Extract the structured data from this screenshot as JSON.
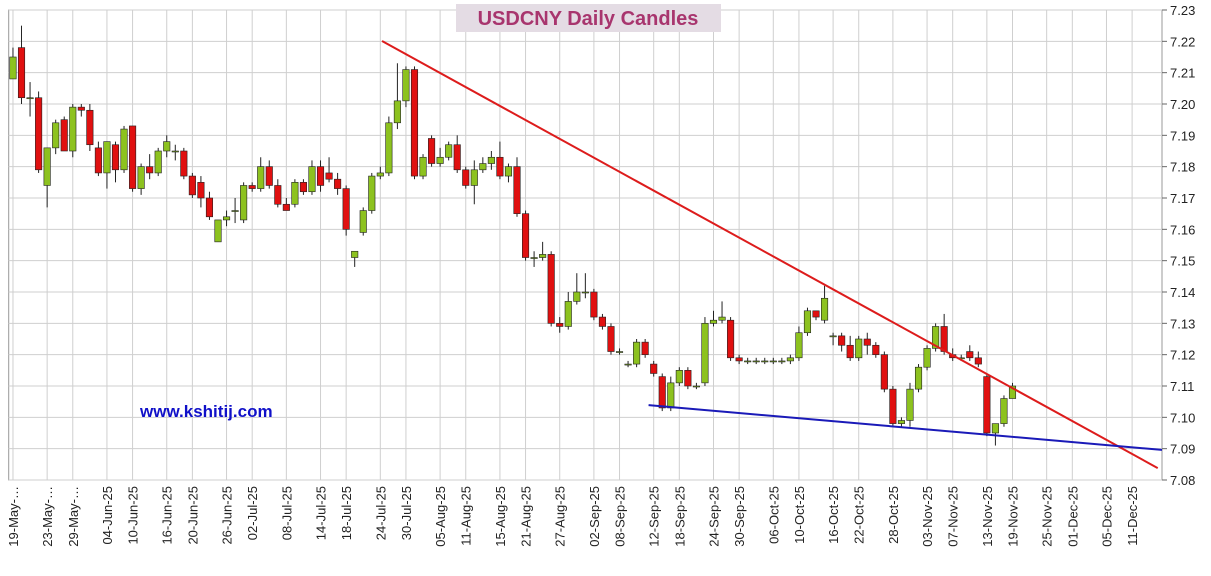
{
  "chart_data": {
    "type": "candlestick",
    "title": "USDCNY Daily Candles",
    "annotation": "www.kshitij.com",
    "up_color": "#8dc21f",
    "down_color": "#e01010",
    "grid": true,
    "ylim": [
      7.08,
      7.23
    ],
    "yticks": [
      7.08,
      7.09,
      {
        "value": 7.1,
        "label": "7.10"
      },
      7.11,
      7.12,
      7.13,
      7.14,
      7.15,
      7.16,
      7.17,
      7.18,
      7.19,
      {
        "value": 7.2,
        "label": "7.20"
      },
      7.21,
      7.22,
      7.23
    ],
    "categories": [
      "19-May-…",
      null,
      null,
      null,
      "23-May-…",
      null,
      null,
      "29-May-…",
      null,
      null,
      null,
      "04-Jun-25",
      null,
      null,
      "10-Jun-25",
      null,
      null,
      null,
      "16-Jun-25",
      null,
      null,
      "20-Jun-25",
      null,
      null,
      null,
      "26-Jun-25",
      null,
      null,
      "02-Jul-25",
      null,
      null,
      null,
      "08-Jul-25",
      null,
      null,
      null,
      "14-Jul-25",
      null,
      null,
      "18-Jul-25",
      null,
      null,
      null,
      "24-Jul-25",
      null,
      null,
      "30-Jul-25",
      null,
      null,
      null,
      "05-Aug-25",
      null,
      null,
      "11-Aug-25",
      null,
      null,
      null,
      "15-Aug-25",
      null,
      null,
      "21-Aug-25",
      null,
      null,
      null,
      "27-Aug-25",
      null,
      null,
      null,
      "02-Sep-25",
      null,
      null,
      "08-Sep-25",
      null,
      null,
      null,
      "12-Sep-25",
      null,
      null,
      "18-Sep-25",
      null,
      null,
      null,
      "24-Sep-25",
      null,
      null,
      "30-Sep-25",
      null,
      null,
      null,
      "06-Oct-25",
      null,
      null,
      "10-Oct-25",
      null,
      null,
      null,
      "16-Oct-25",
      null,
      null,
      "22-Oct-25",
      null,
      null,
      null,
      "28-Oct-25",
      null,
      null,
      null,
      "03-Nov-25",
      null,
      null,
      "07-Nov-25",
      null,
      null,
      null,
      "13-Nov-25",
      null,
      null,
      "19-Nov-25",
      null,
      null,
      null,
      "25-Nov-25",
      null,
      null,
      "01-Dec-25",
      null,
      null,
      null,
      "05-Dec-25",
      null,
      null,
      "11-Dec-25",
      null,
      null,
      null
    ],
    "ohlc": [
      [
        7.208,
        7.218,
        7.208,
        7.215
      ],
      [
        7.218,
        7.225,
        7.2,
        7.202
      ],
      [
        7.202,
        7.207,
        7.196,
        7.202
      ],
      [
        7.202,
        7.204,
        7.178,
        7.179
      ],
      [
        7.174,
        7.186,
        7.167,
        7.186
      ],
      [
        7.186,
        7.195,
        7.184,
        7.194
      ],
      [
        7.195,
        7.196,
        7.185,
        7.185
      ],
      [
        7.185,
        7.2,
        7.183,
        7.199
      ],
      [
        7.199,
        7.2,
        7.196,
        7.198
      ],
      [
        7.198,
        7.2,
        7.185,
        7.187
      ],
      [
        7.186,
        7.188,
        7.177,
        7.178
      ],
      [
        7.178,
        7.188,
        7.173,
        7.188
      ],
      [
        7.187,
        7.188,
        7.175,
        7.179
      ],
      [
        7.179,
        7.193,
        7.178,
        7.192
      ],
      [
        7.193,
        7.193,
        7.172,
        7.173
      ],
      [
        7.173,
        7.181,
        7.171,
        7.18
      ],
      [
        7.18,
        7.184,
        7.176,
        7.178
      ],
      [
        7.178,
        7.186,
        7.177,
        7.185
      ],
      [
        7.185,
        7.19,
        7.183,
        7.188
      ],
      [
        7.185,
        7.187,
        7.182,
        7.185
      ],
      [
        7.185,
        7.186,
        7.176,
        7.177
      ],
      [
        7.177,
        7.178,
        7.17,
        7.171
      ],
      [
        7.175,
        7.177,
        7.167,
        7.17
      ],
      [
        7.17,
        7.172,
        7.163,
        7.164
      ],
      [
        7.156,
        7.163,
        7.156,
        7.163
      ],
      [
        7.163,
        7.166,
        7.161,
        7.164
      ],
      [
        7.166,
        7.17,
        7.162,
        7.166
      ],
      [
        7.163,
        7.175,
        7.162,
        7.174
      ],
      [
        7.174,
        7.175,
        7.172,
        7.173
      ],
      [
        7.173,
        7.183,
        7.172,
        7.18
      ],
      [
        7.18,
        7.182,
        7.173,
        7.174
      ],
      [
        7.174,
        7.176,
        7.167,
        7.168
      ],
      [
        7.168,
        7.17,
        7.166,
        7.166
      ],
      [
        7.168,
        7.176,
        7.167,
        7.175
      ],
      [
        7.175,
        7.176,
        7.171,
        7.172
      ],
      [
        7.172,
        7.182,
        7.171,
        7.18
      ],
      [
        7.18,
        7.182,
        7.172,
        7.174
      ],
      [
        7.178,
        7.183,
        7.175,
        7.176
      ],
      [
        7.176,
        7.178,
        7.171,
        7.173
      ],
      [
        7.173,
        7.174,
        7.158,
        7.16
      ],
      [
        7.151,
        7.153,
        7.148,
        7.153
      ],
      [
        7.159,
        7.167,
        7.158,
        7.166
      ],
      [
        7.166,
        7.178,
        7.165,
        7.177
      ],
      [
        7.177,
        7.18,
        7.176,
        7.178
      ],
      [
        7.178,
        7.196,
        7.177,
        7.194
      ],
      [
        7.194,
        7.213,
        7.192,
        7.201
      ],
      [
        7.201,
        7.212,
        7.199,
        7.211
      ],
      [
        7.211,
        7.212,
        7.176,
        7.177
      ],
      [
        7.177,
        7.184,
        7.176,
        7.183
      ],
      [
        7.189,
        7.19,
        7.18,
        7.181
      ],
      [
        7.181,
        7.186,
        7.18,
        7.183
      ],
      [
        7.183,
        7.188,
        7.182,
        7.187
      ],
      [
        7.187,
        7.19,
        7.178,
        7.179
      ],
      [
        7.179,
        7.18,
        7.173,
        7.174
      ],
      [
        7.174,
        7.182,
        7.168,
        7.179
      ],
      [
        7.179,
        7.183,
        7.178,
        7.181
      ],
      [
        7.181,
        7.185,
        7.179,
        7.183
      ],
      [
        7.183,
        7.188,
        7.176,
        7.177
      ],
      [
        7.177,
        7.181,
        7.175,
        7.18
      ],
      [
        7.18,
        7.183,
        7.164,
        7.165
      ],
      [
        7.165,
        7.166,
        7.15,
        7.151
      ],
      [
        7.151,
        7.153,
        7.148,
        7.151
      ],
      [
        7.151,
        7.156,
        7.15,
        7.152
      ],
      [
        7.152,
        7.153,
        7.129,
        7.13
      ],
      [
        7.13,
        7.132,
        7.127,
        7.129
      ],
      [
        7.129,
        7.14,
        7.128,
        7.137
      ],
      [
        7.137,
        7.146,
        7.136,
        7.14
      ],
      [
        7.14,
        7.146,
        7.138,
        7.14
      ],
      [
        7.14,
        7.141,
        7.131,
        7.132
      ],
      [
        7.132,
        7.133,
        7.128,
        7.129
      ],
      [
        7.129,
        7.13,
        7.12,
        7.121
      ],
      [
        7.121,
        7.122,
        7.12,
        7.121
      ],
      [
        7.117,
        7.118,
        7.116,
        7.117
      ],
      [
        7.117,
        7.125,
        7.116,
        7.124
      ],
      [
        7.124,
        7.125,
        7.119,
        7.12
      ],
      [
        7.117,
        7.118,
        7.113,
        7.114
      ],
      [
        7.113,
        7.114,
        7.102,
        7.103
      ],
      [
        7.103,
        7.113,
        7.102,
        7.111
      ],
      [
        7.111,
        7.116,
        7.11,
        7.115
      ],
      [
        7.115,
        7.116,
        7.109,
        7.11
      ],
      [
        7.11,
        7.111,
        7.109,
        7.11
      ],
      [
        7.111,
        7.132,
        7.11,
        7.13
      ],
      [
        7.13,
        7.134,
        7.129,
        7.131
      ],
      [
        7.131,
        7.137,
        7.13,
        7.132
      ],
      [
        7.131,
        7.132,
        7.118,
        7.119
      ],
      [
        7.119,
        7.12,
        7.117,
        7.118
      ],
      [
        7.118,
        7.119,
        7.117,
        7.118
      ],
      [
        7.118,
        7.119,
        7.117,
        7.118
      ],
      [
        7.118,
        7.119,
        7.117,
        7.118
      ],
      [
        7.118,
        7.119,
        7.117,
        7.118
      ],
      [
        7.118,
        7.119,
        7.117,
        7.118
      ],
      [
        7.118,
        7.12,
        7.117,
        7.119
      ],
      [
        7.119,
        7.129,
        7.118,
        7.127
      ],
      [
        7.127,
        7.135,
        7.126,
        7.134
      ],
      [
        7.134,
        7.134,
        7.131,
        7.132
      ],
      [
        7.131,
        7.142,
        7.13,
        7.138
      ],
      [
        7.126,
        7.127,
        7.123,
        7.126
      ],
      [
        7.126,
        7.127,
        7.121,
        7.123
      ],
      [
        7.123,
        7.126,
        7.118,
        7.119
      ],
      [
        7.119,
        7.126,
        7.118,
        7.125
      ],
      [
        7.125,
        7.127,
        7.12,
        7.123
      ],
      [
        7.123,
        7.124,
        7.119,
        7.12
      ],
      [
        7.12,
        7.121,
        7.108,
        7.109
      ],
      [
        7.109,
        7.11,
        7.097,
        7.098
      ],
      [
        7.098,
        7.1,
        7.097,
        7.099
      ],
      [
        7.099,
        7.111,
        7.097,
        7.109
      ],
      [
        7.109,
        7.117,
        7.108,
        7.116
      ],
      [
        7.116,
        7.123,
        7.115,
        7.122
      ],
      [
        7.122,
        7.13,
        7.121,
        7.129
      ],
      [
        7.129,
        7.133,
        7.12,
        7.121
      ],
      [
        7.12,
        7.122,
        7.118,
        7.119
      ],
      [
        7.119,
        7.12,
        7.118,
        7.119
      ],
      [
        7.121,
        7.123,
        7.118,
        7.119
      ],
      [
        7.119,
        7.121,
        7.116,
        7.117
      ],
      [
        7.113,
        7.114,
        7.094,
        7.095
      ],
      [
        7.095,
        7.098,
        7.091,
        7.098
      ],
      [
        7.098,
        7.107,
        7.097,
        7.106
      ],
      [
        7.106,
        7.111,
        7.106,
        7.11
      ],
      null,
      null,
      null,
      null,
      null,
      null,
      null,
      null,
      null,
      null,
      null,
      null,
      null,
      null,
      null,
      null,
      null
    ],
    "trendlines": [
      {
        "color": "#dd1c1c",
        "x": [
          43.2,
          134.0
        ],
        "values": [
          7.2201,
          7.0838
        ]
      },
      {
        "color": "#1a1ab8",
        "x": [
          74.4,
          134.5
        ],
        "values": [
          7.1039,
          7.0896
        ]
      }
    ]
  }
}
